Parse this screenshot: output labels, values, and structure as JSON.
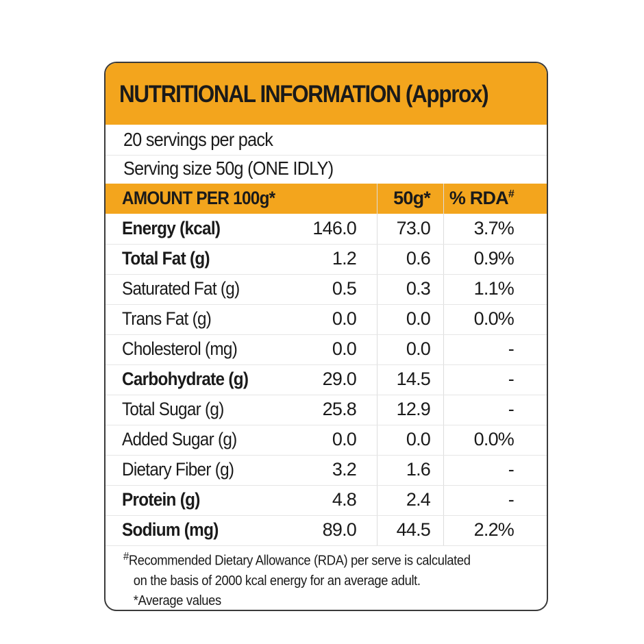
{
  "title": "NUTRITIONAL INFORMATION (Approx)",
  "servings_per_pack": "20 servings per pack",
  "serving_size": "Serving size 50g (ONE IDLY)",
  "header": {
    "col0": "AMOUNT PER 100g*",
    "col1": "",
    "col2": "50g*",
    "col3": "% RDA",
    "col3_mark": "#"
  },
  "rows": [
    {
      "name": "Energy (kcal)",
      "per100": "146.0",
      "per50": "73.0",
      "rda": "3.7%",
      "bold": true
    },
    {
      "name": "Total Fat (g)",
      "per100": "1.2",
      "per50": "0.6",
      "rda": "0.9%",
      "bold": true
    },
    {
      "name": "Saturated Fat (g)",
      "per100": "0.5",
      "per50": "0.3",
      "rda": "1.1%",
      "bold": false
    },
    {
      "name": "Trans Fat (g)",
      "per100": "0.0",
      "per50": "0.0",
      "rda": "0.0%",
      "bold": false
    },
    {
      "name": "Cholesterol (mg)",
      "per100": "0.0",
      "per50": "0.0",
      "rda": "-",
      "bold": false
    },
    {
      "name": "Carbohydrate (g)",
      "per100": "29.0",
      "per50": "14.5",
      "rda": "-",
      "bold": true
    },
    {
      "name": "Total Sugar (g)",
      "per100": "25.8",
      "per50": "12.9",
      "rda": "-",
      "bold": false
    },
    {
      "name": "Added Sugar (g)",
      "per100": "0.0",
      "per50": "0.0",
      "rda": "0.0%",
      "bold": false
    },
    {
      "name": "Dietary Fiber (g)",
      "per100": "3.2",
      "per50": "1.6",
      "rda": "-",
      "bold": false
    },
    {
      "name": "Protein (g)",
      "per100": "4.8",
      "per50": "2.4",
      "rda": "-",
      "bold": true
    },
    {
      "name": "Sodium (mg)",
      "per100": "89.0",
      "per50": "44.5",
      "rda": "2.2%",
      "bold": true
    }
  ],
  "footnote": {
    "mark": "#",
    "line1": "Recommended Dietary Allowance (RDA) per serve is calculated",
    "line2": "on the basis of 2000 kcal energy for an average adult.",
    "line3": "*Average values"
  },
  "colors": {
    "accent": "#F3A51D",
    "border": "#3a3a3a",
    "text": "#1a1a1a"
  }
}
